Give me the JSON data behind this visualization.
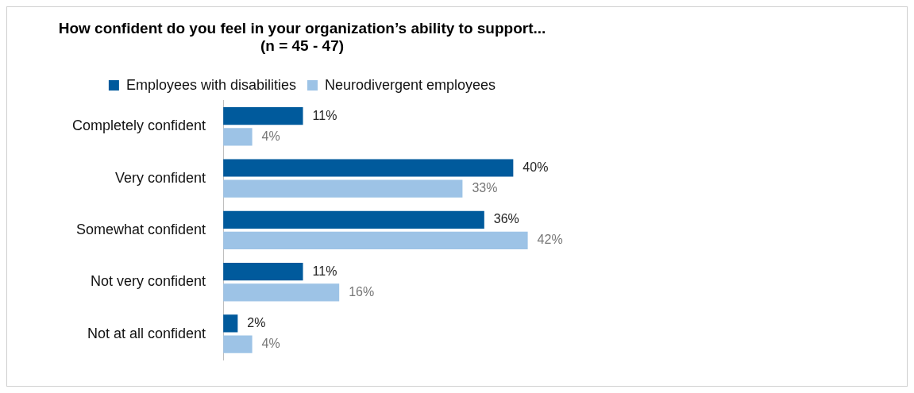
{
  "chart_data": {
    "type": "bar",
    "orientation": "horizontal",
    "title": [
      "How confident do you feel in your organization’s ability to support...",
      "(n = 45 - 47)"
    ],
    "categories": [
      "Completely confident",
      "Very confident",
      "Somewhat confident",
      "Not very confident",
      "Not at all confident"
    ],
    "series": [
      {
        "name": "Employees with disabilities",
        "color": "#005a9c",
        "values": [
          11,
          40,
          36,
          11,
          2
        ],
        "value_labels": [
          "11%",
          "40%",
          "36%",
          "11%",
          "2%"
        ]
      },
      {
        "name": "Neurodivergent employees",
        "color": "#9dc3e6",
        "values": [
          4,
          33,
          42,
          16,
          4
        ],
        "value_labels": [
          "4%",
          "33%",
          "42%",
          "16%",
          "4%"
        ]
      }
    ],
    "tick_labels": "y",
    "grid": false,
    "legend": "top"
  }
}
